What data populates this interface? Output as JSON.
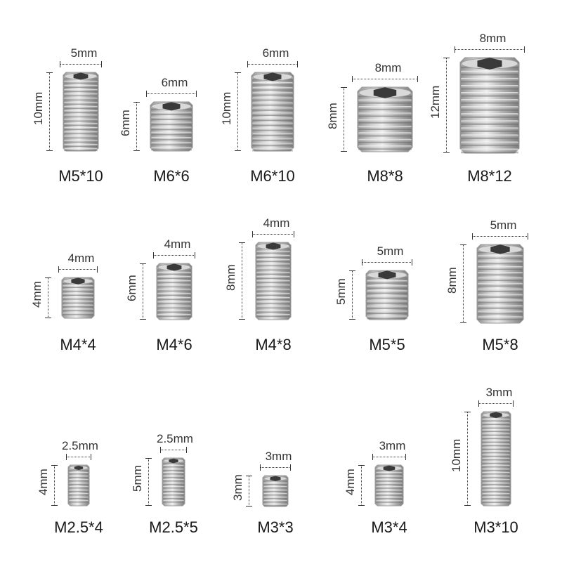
{
  "screws": [
    {
      "name": "M5*10",
      "diameter_label": "5mm",
      "length_label": "10mm"
    },
    {
      "name": "M6*6",
      "diameter_label": "6mm",
      "length_label": "6mm"
    },
    {
      "name": "M6*10",
      "diameter_label": "6mm",
      "length_label": "10mm"
    },
    {
      "name": "M8*8",
      "diameter_label": "8mm",
      "length_label": "8mm"
    },
    {
      "name": "M8*12",
      "diameter_label": "8mm",
      "length_label": "12mm"
    },
    {
      "name": "M4*4",
      "diameter_label": "4mm",
      "length_label": "4mm"
    },
    {
      "name": "M4*6",
      "diameter_label": "4mm",
      "length_label": "6mm"
    },
    {
      "name": "M4*8",
      "diameter_label": "4mm",
      "length_label": "8mm"
    },
    {
      "name": "M5*5",
      "diameter_label": "5mm",
      "length_label": "5mm"
    },
    {
      "name": "M5*8",
      "diameter_label": "5mm",
      "length_label": "8mm"
    },
    {
      "name": "M2.5*4",
      "diameter_label": "2.5mm",
      "length_label": "4mm"
    },
    {
      "name": "M2.5*5",
      "diameter_label": "2.5mm",
      "length_label": "5mm"
    },
    {
      "name": "M3*3",
      "diameter_label": "3mm",
      "length_label": "3mm"
    },
    {
      "name": "M3*4",
      "diameter_label": "3mm",
      "length_label": "4mm"
    },
    {
      "name": "M3*10",
      "diameter_label": "3mm",
      "length_label": "10mm"
    }
  ],
  "colors": {
    "background": "#ffffff",
    "steel_light": "#eeeeee",
    "steel_dark": "#8f8f8f",
    "hex_socket": "#3a3a3a"
  }
}
